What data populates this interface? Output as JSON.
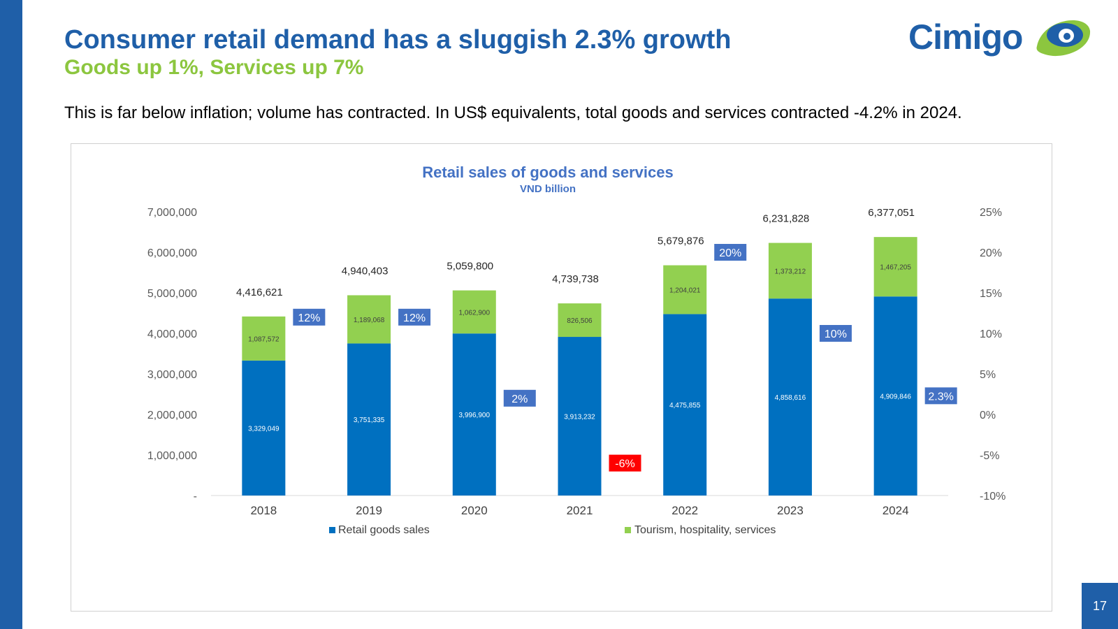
{
  "slide": {
    "title": "Consumer retail demand has a sluggish 2.3% growth",
    "subtitle": "Goods up 1%, Services up 7%",
    "description": "This is far below inflation; volume has contracted. In US$ equivalents, total goods and services contracted -4.2% in 2024.",
    "logo_text": "Cimigo",
    "page_number": "17"
  },
  "colors": {
    "brand_blue": "#1f5fa8",
    "brand_green": "#8cc63f",
    "goods": "#0070c0",
    "services": "#92d050",
    "growth_positive": "#4472c4",
    "growth_negative": "#ff0000"
  },
  "chart_data": {
    "type": "bar",
    "stacked": true,
    "title": "Retail sales of goods and services",
    "subtitle": "VND billion",
    "categories": [
      "2018",
      "2019",
      "2020",
      "2021",
      "2022",
      "2023",
      "2024"
    ],
    "series": [
      {
        "name": "Retail goods sales",
        "color": "#0070c0",
        "values": [
          3329049,
          3751335,
          3996900,
          3913232,
          4475855,
          4858616,
          4909846
        ],
        "labels": [
          "3,329,049",
          "3,751,335",
          "3,996,900",
          "3,913,232",
          "4,475,855",
          "4,858,616",
          "4,909,846"
        ]
      },
      {
        "name": "Tourism, hospitality, services",
        "color": "#92d050",
        "values": [
          1087572,
          1189068,
          1062900,
          826506,
          1204021,
          1373212,
          1467205
        ],
        "labels": [
          "1,087,572",
          "1,189,068",
          "1,062,900",
          "826,506",
          "1,204,021",
          "1,373,212",
          "1,467,205"
        ]
      }
    ],
    "totals": [
      4416621,
      4940403,
      5059800,
      4739738,
      5679876,
      6231828,
      6377051
    ],
    "total_labels": [
      "4,416,621",
      "4,940,403",
      "5,059,800",
      "4,739,738",
      "5,679,876",
      "6,231,828",
      "6,377,051"
    ],
    "growth": [
      12,
      12,
      2,
      -6,
      20,
      10,
      2.3
    ],
    "growth_labels": [
      "12%",
      "12%",
      "2%",
      "-6%",
      "20%",
      "10%",
      "2.3%"
    ],
    "y_left": {
      "min": 0,
      "max": 7000000,
      "ticks": [
        0,
        1000000,
        2000000,
        3000000,
        4000000,
        5000000,
        6000000,
        7000000
      ],
      "tick_labels": [
        "-",
        "1,000,000",
        "2,000,000",
        "3,000,000",
        "4,000,000",
        "5,000,000",
        "6,000,000",
        "7,000,000"
      ]
    },
    "y_right": {
      "min": -10,
      "max": 25,
      "ticks": [
        -10,
        -5,
        0,
        5,
        10,
        15,
        20,
        25
      ],
      "tick_labels": [
        "-10%",
        "-5%",
        "0%",
        "5%",
        "10%",
        "15%",
        "20%",
        "25%"
      ]
    },
    "legend": [
      "Retail goods sales",
      "Tourism, hospitality, services"
    ],
    "legend_position": "bottom",
    "grid": false
  }
}
